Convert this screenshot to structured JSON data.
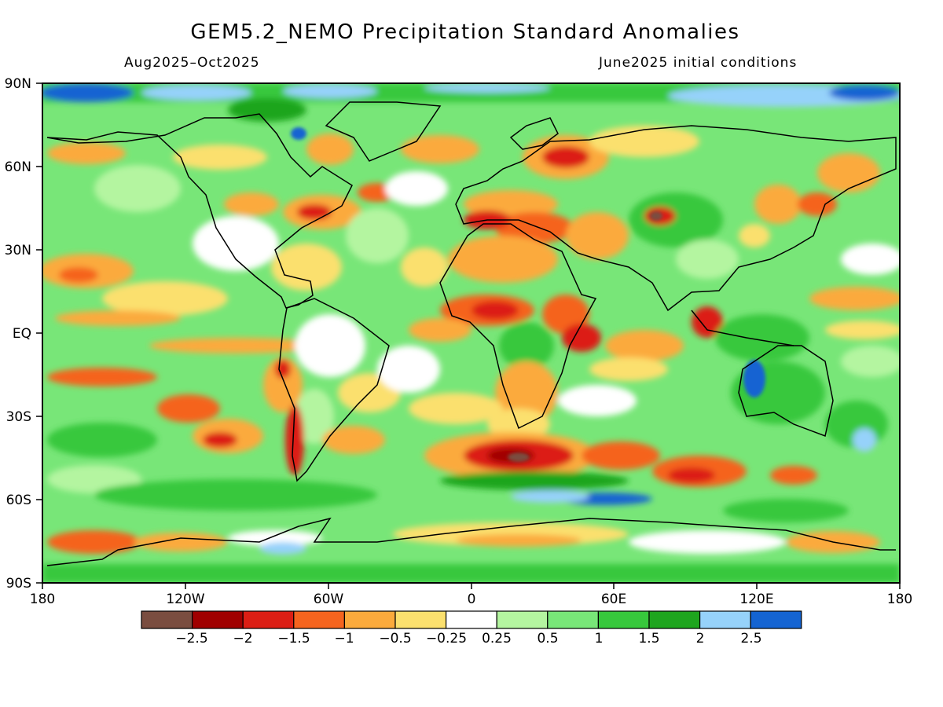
{
  "title": "GEM5.2_NEMO Precipitation Standard Anomalies",
  "period": "Aug2025–Oct2025",
  "init_conditions": "June2025 initial conditions",
  "lat_labels": [
    "90N",
    "60N",
    "30N",
    "EQ",
    "30S",
    "60S",
    "90S"
  ],
  "lon_labels": [
    "180",
    "120W",
    "60W",
    "0",
    "60E",
    "120E",
    "180"
  ],
  "legend": {
    "colors": [
      "#7a4d40",
      "#a00000",
      "#dc1e14",
      "#f5641e",
      "#fbaa3c",
      "#fbe06e",
      "#ffffff",
      "#b4f5a0",
      "#78e678",
      "#37c83c",
      "#1ea51e",
      "#96d2fa",
      "#1464d2"
    ],
    "labels": [
      "−2.5",
      "−2",
      "−1.5",
      "−1",
      "−0.5",
      "−0.25",
      "0.25",
      "0.5",
      "1",
      "1.5",
      "2",
      "2.5"
    ]
  },
  "colors": {
    "land_outline": "#000000",
    "frame": "#000000"
  }
}
